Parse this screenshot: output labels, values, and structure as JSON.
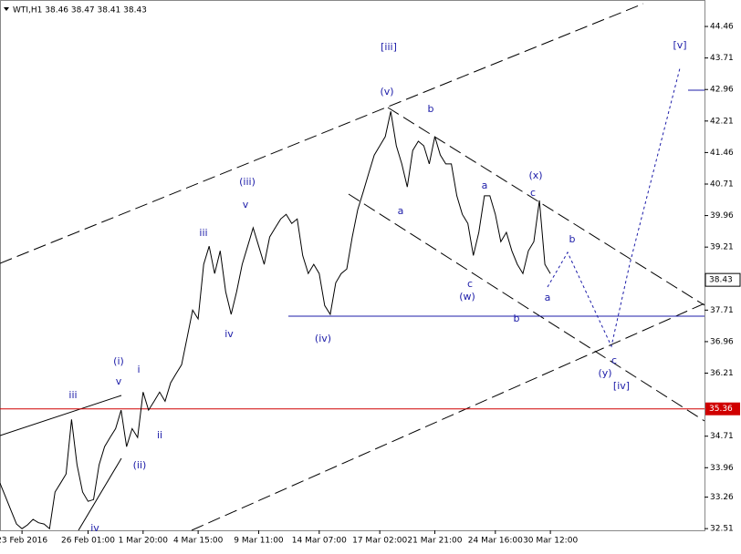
{
  "chart_data": {
    "type": "line",
    "title": "WTI,H1  38.46 38.47 38.41 38.43",
    "series": [
      {
        "name": "WTI",
        "color": "#000000",
        "values": [
          33.59,
          33.27,
          32.94,
          32.62,
          32.51,
          32.6,
          32.73,
          32.65,
          32.62,
          32.51,
          33.38,
          33.59,
          33.81,
          35.11,
          34.03,
          33.38,
          33.16,
          33.2,
          34.03,
          34.46,
          34.68,
          34.89,
          35.33,
          34.46,
          34.89,
          34.68,
          35.76,
          35.33,
          35.54,
          35.76,
          35.54,
          35.98,
          36.2,
          36.41,
          37.06,
          37.71,
          37.5,
          38.8,
          39.23,
          38.58,
          39.12,
          38.15,
          37.61,
          38.15,
          38.8,
          39.23,
          39.67,
          39.23,
          38.8,
          39.45,
          39.67,
          39.88,
          39.99,
          39.77,
          39.88,
          39.01,
          38.58,
          38.8,
          38.58,
          37.82,
          37.61,
          38.36,
          38.58,
          38.69,
          39.45,
          40.1,
          40.53,
          40.97,
          41.4,
          41.62,
          41.84,
          42.44,
          41.62,
          41.19,
          40.64,
          41.51,
          41.73,
          41.62,
          41.19,
          41.84,
          41.4,
          41.19,
          41.19,
          40.43,
          39.99,
          39.77,
          39.01,
          39.56,
          40.43,
          40.43,
          39.99,
          39.34,
          39.56,
          39.12,
          38.8,
          38.58,
          39.12,
          39.34,
          40.32,
          38.8,
          38.58
        ]
      }
    ],
    "xlim": [
      0,
      128
    ],
    "xticks": [
      {
        "value": 4,
        "label": "23 Feb 2016"
      },
      {
        "value": 16,
        "label": "26 Feb 01:00"
      },
      {
        "value": 26,
        "label": "1 Mar 20:00"
      },
      {
        "value": 36,
        "label": "4 Mar 15:00"
      },
      {
        "value": 47,
        "label": "9 Mar 11:00"
      },
      {
        "value": 58,
        "label": "14 Mar 07:00"
      },
      {
        "value": 69,
        "label": "17 Mar 02:00"
      },
      {
        "value": 79,
        "label": "21 Mar 21:00"
      },
      {
        "value": 90,
        "label": "24 Mar 16:00"
      },
      {
        "value": 100,
        "label": "30 Mar 12:00"
      }
    ],
    "ylim": [
      32.47,
      45.09
    ],
    "yticks": [
      44.46,
      43.71,
      42.96,
      42.21,
      41.46,
      40.71,
      39.96,
      39.21,
      37.71,
      36.96,
      36.21,
      34.71,
      33.96,
      33.26,
      32.51
    ],
    "last_price": 38.43,
    "level": {
      "value": 35.36,
      "color": "#d00000"
    },
    "annotations": [
      "[iii]",
      "(v)",
      "b",
      "(iii)",
      "v",
      "iii",
      "iv",
      "(iv)",
      "a",
      "a",
      "(x)",
      "c",
      "c",
      "(w)",
      "b",
      "a",
      "b",
      "c",
      "(y)",
      "[iv]",
      "[v]",
      "(i)",
      "v",
      "i",
      "iii",
      "ii",
      "(ii)",
      "iv"
    ]
  }
}
